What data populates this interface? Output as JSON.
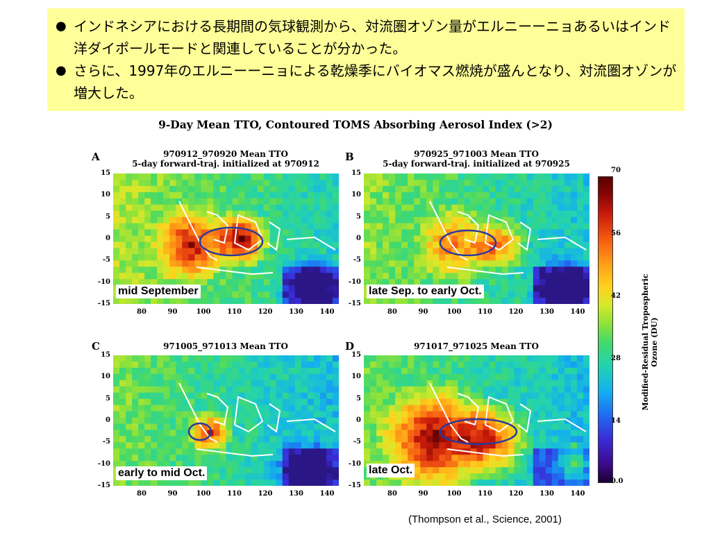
{
  "notes": {
    "bullets": [
      "インドネシアにおける長期間の気球観測から、対流圏オゾン量がエルニーーニョあるいはインド洋ダイポールモードと関連していることが分かった。",
      "さらに、1997年のエルニーーニョによる乾燥季にバイオマス燃焼が盛んとなり、対流圏オゾンが増大した。"
    ],
    "bullet_symbol": "●"
  },
  "figure": {
    "title": "9-Day Mean TTO, Contoured TOMS Absorbing Aerosol Index (>2)",
    "y_ticks": [
      "15",
      "10",
      "5",
      "0",
      "-5",
      "-10",
      "-15"
    ],
    "x_ticks": [
      "80",
      "90",
      "100",
      "110",
      "120",
      "130",
      "140"
    ],
    "panels": [
      {
        "letter": "A",
        "header1": "970912_970920 Mean TTO",
        "header2": "5-day forward-traj. initialized at 970912",
        "caption": "mid September"
      },
      {
        "letter": "B",
        "header1": "970925_971003 Mean TTO",
        "header2": "5-day forward-traj. initialized at 970925",
        "caption": "late Sep. to early Oct."
      },
      {
        "letter": "C",
        "header1": "971005_971013 Mean TTO",
        "header2": "",
        "caption": "early to mid Oct."
      },
      {
        "letter": "D",
        "header1": "971017_971025 Mean TTO",
        "header2": "",
        "caption": "late Oct."
      }
    ],
    "colorbar": {
      "label": "Modified-Residual Tropospheric Ozone (DU)",
      "ticks": [
        "70",
        "56",
        "42",
        "28",
        "14",
        "0.0"
      ]
    },
    "citation": "(Thompson et al., Science, 2001)"
  }
}
